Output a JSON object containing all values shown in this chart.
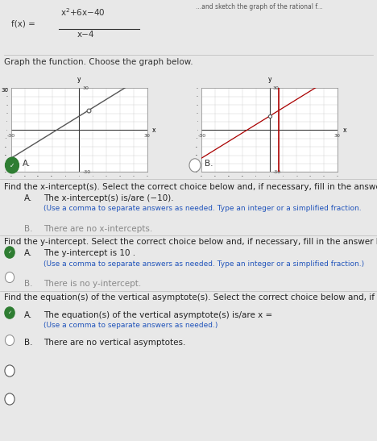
{
  "bg_color": "#e8e8e8",
  "formula_fx": "f(x) =",
  "formula_num": "x²+6x−40",
  "formula_den": "x−4",
  "section_graph": "Graph the function. Choose the graph below.",
  "check_color": "#2e7d32",
  "xlim": [
    -30,
    30
  ],
  "ylim": [
    -30,
    30
  ],
  "line_A_color": "#555555",
  "line_B_color": "#aa0000",
  "find_x_text": "Find the x-intercept(s). Select the correct choice below and, if necessary, fill in the answer box",
  "xi_A_main": "The x-intercept(s) is/are (−10).",
  "xi_A_sub": "(Use a comma to separate answers as needed. Type an integer or a simplified fraction.",
  "xi_B": "There are no x-intercepts.",
  "find_y_text": "Find the y-intercept. Select the correct choice below and, if necessary, fill in the answer box to",
  "yi_A_main": "The y-intercept is 10 .",
  "yi_A_sub": "(Use a comma to separate answers as needed. Type an integer or a simplified fraction.)",
  "yi_B": "There is no y-intercept.",
  "find_va_text": "Find the equation(s) of the vertical asymptote(s). Select the correct choice below and, if necess",
  "va_A_main": "The equation(s) of the vertical asymptote(s) is/are x =",
  "va_A_sub": "(Use a comma to separate answers as needed.)",
  "va_B": "There are no vertical asymptotes.",
  "highlight_bg": "#d6ead6",
  "highlight_border": "#5a9e5a",
  "font_main": 7.5,
  "font_small": 6.5,
  "font_tiny": 5.5
}
